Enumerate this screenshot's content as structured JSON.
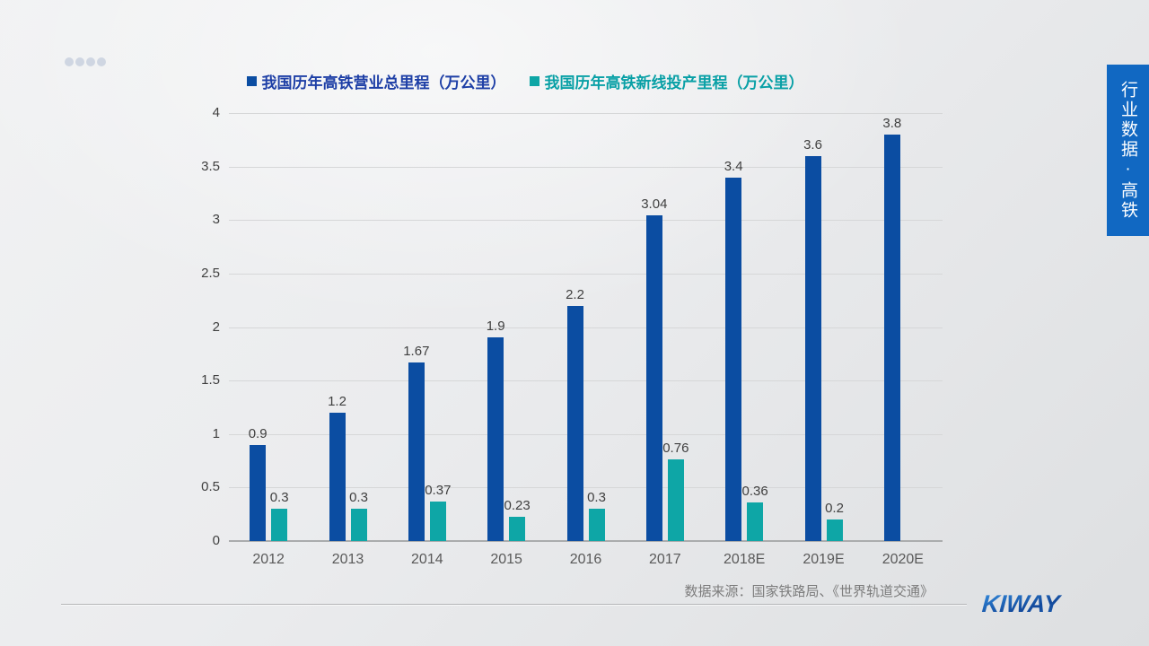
{
  "legend": {
    "items": [
      {
        "label": "我国历年高铁营业总里程（万公里）",
        "swatch_color": "#0b4da2",
        "text_color": "#1e3fa6"
      },
      {
        "label": "我国历年高铁新线投产里程（万公里）",
        "swatch_color": "#0ea6a6",
        "text_color": "#09a0a6"
      }
    ]
  },
  "chart_data": {
    "type": "bar",
    "title": "",
    "categories": [
      "2012",
      "2013",
      "2014",
      "2015",
      "2016",
      "2017",
      "2018E",
      "2019E",
      "2020E"
    ],
    "series": [
      {
        "name": "我国历年高铁营业总里程（万公里）",
        "key": "total",
        "color": "#0b4da2",
        "values": [
          0.9,
          1.2,
          1.67,
          1.9,
          2.2,
          3.04,
          3.4,
          3.6,
          3.8
        ]
      },
      {
        "name": "我国历年高铁新线投产里程（万公里）",
        "key": "new-line",
        "color": "#0ea6a6",
        "values": [
          0.3,
          0.3,
          0.37,
          0.23,
          0.3,
          0.76,
          0.36,
          0.2,
          null
        ]
      }
    ],
    "ylim": [
      0,
      4
    ],
    "yticks": [
      "0",
      "0.5",
      "1",
      "1.5",
      "2",
      "2.5",
      "3",
      "3.5",
      "4"
    ],
    "grid": true,
    "legend_position": "top",
    "data_labels": true
  },
  "footer": {
    "source": "数据来源：国家铁路局、《世界轨道交通》",
    "logo_text": "KIWAY"
  },
  "side_banner": {
    "text": "行业数据·高铁",
    "color": "#1168c2"
  }
}
